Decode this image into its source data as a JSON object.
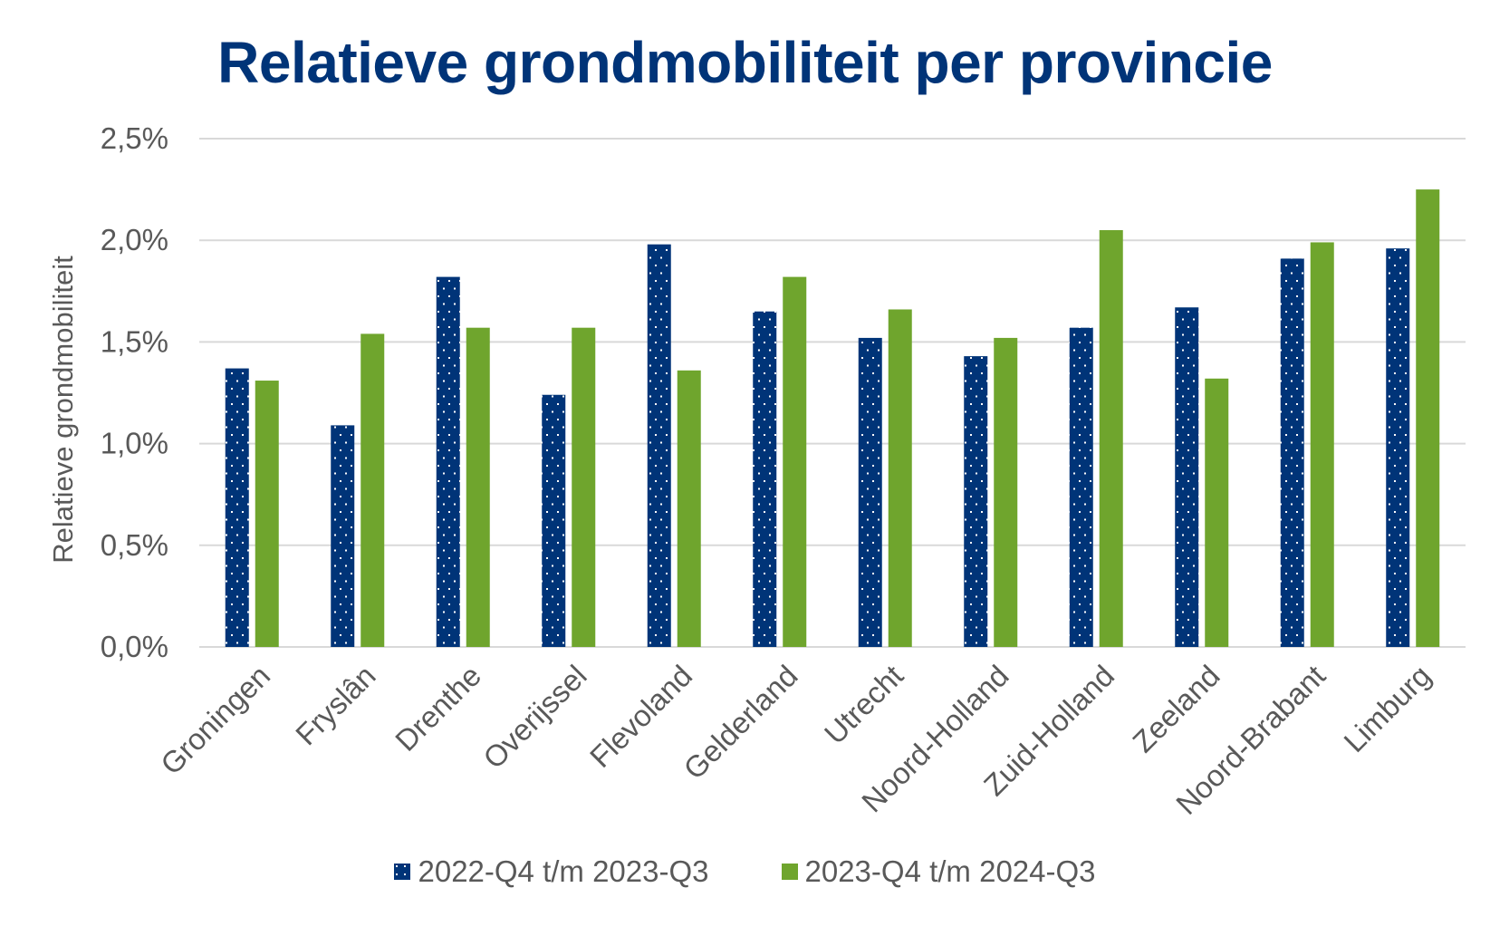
{
  "chart_data": {
    "type": "bar",
    "title": "Relatieve grondmobiliteit per provincie",
    "ylabel": "Relatieve grondmobiliteit",
    "xlabel": "",
    "categories": [
      "Groningen",
      "Fryslân",
      "Drenthe",
      "Overijssel",
      "Flevoland",
      "Gelderland",
      "Utrecht",
      "Noord-Holland",
      "Zuid-Holland",
      "Zeeland",
      "Noord-Brabant",
      "Limburg"
    ],
    "series": [
      {
        "name": "2022-Q4 t/m 2023-Q3",
        "values": [
          1.37,
          1.09,
          1.82,
          1.24,
          1.98,
          1.65,
          1.52,
          1.43,
          1.57,
          1.67,
          1.91,
          1.96
        ],
        "color": "#003478",
        "pattern": "dotted"
      },
      {
        "name": "2023-Q4 t/m 2024-Q3",
        "values": [
          1.31,
          1.54,
          1.57,
          1.57,
          1.36,
          1.82,
          1.66,
          1.52,
          2.05,
          1.32,
          1.99,
          2.25
        ],
        "color": "#6fa52d",
        "pattern": "solid"
      }
    ],
    "yticks": [
      "0,0%",
      "0,5%",
      "1,0%",
      "1,5%",
      "2,0%",
      "2,5%"
    ],
    "ytick_values": [
      0,
      0.5,
      1.0,
      1.5,
      2.0,
      2.5
    ],
    "ylim": [
      0,
      2.5
    ],
    "grid": true,
    "legend": "bottom"
  },
  "colors": {
    "title": "#003478",
    "axis_text": "#595959",
    "gridline": "#d9d9d9"
  }
}
